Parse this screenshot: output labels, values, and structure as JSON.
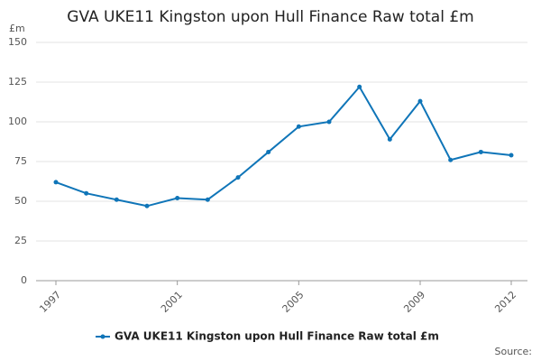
{
  "chart_data": {
    "type": "line",
    "title": "GVA UKE11 Kingston upon Hull Finance Raw total £m",
    "y_unit": "£m",
    "source": "Source:",
    "x": [
      1997,
      1998,
      1999,
      2000,
      2001,
      2002,
      2003,
      2004,
      2005,
      2006,
      2007,
      2008,
      2009,
      2010,
      2011,
      2012
    ],
    "series": [
      {
        "name": "GVA UKE11 Kingston upon Hull Finance Raw total £m",
        "color": "#0f75b8",
        "values": [
          62,
          55,
          51,
          47,
          52,
          51,
          65,
          81,
          97,
          100,
          122,
          89,
          113,
          76,
          81,
          79
        ]
      }
    ],
    "xlim": [
      1997,
      2012
    ],
    "xticks": [
      1997,
      2001,
      2005,
      2009,
      2012
    ],
    "ylim": [
      0,
      150
    ],
    "yticks": [
      0,
      25,
      50,
      75,
      100,
      125,
      150
    ],
    "grid": true
  }
}
